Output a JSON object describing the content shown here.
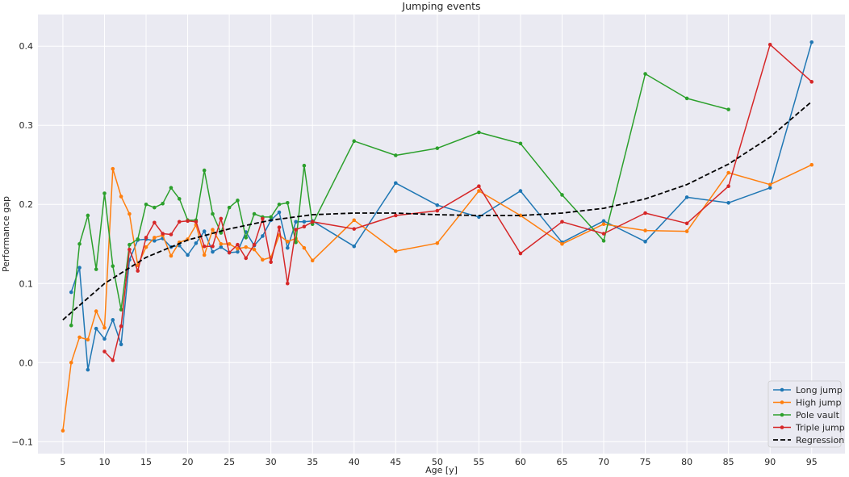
{
  "chart_data": {
    "type": "line",
    "title": "Jumping events",
    "xlabel": "Age [y]",
    "ylabel": "Performance gap",
    "xlim": [
      2,
      99
    ],
    "ylim": [
      -0.115,
      0.44
    ],
    "xticks": [
      5,
      10,
      15,
      20,
      25,
      30,
      35,
      40,
      45,
      50,
      55,
      60,
      65,
      70,
      75,
      80,
      85,
      90,
      95
    ],
    "yticks": [
      -0.1,
      0.0,
      0.1,
      0.2,
      0.3,
      0.4
    ],
    "ytick_labels": [
      "−0.1",
      "0.0",
      "0.1",
      "0.2",
      "0.3",
      "0.4"
    ],
    "grid": true,
    "background": "#eaeaf2",
    "legend_position": "lower-right",
    "series": [
      {
        "name": "Long jump",
        "color": "#1f77b4",
        "x": [
          6,
          7,
          8,
          9,
          10,
          11,
          12,
          13,
          14,
          15,
          16,
          17,
          18,
          19,
          20,
          21,
          22,
          23,
          24,
          25,
          26,
          27,
          28,
          29,
          30,
          31,
          32,
          33,
          34,
          35,
          40,
          45,
          50,
          55,
          60,
          65,
          70,
          75,
          80,
          85,
          90,
          95
        ],
        "y": [
          0.089,
          0.12,
          -0.009,
          0.043,
          0.03,
          0.054,
          0.023,
          0.13,
          0.155,
          0.156,
          0.154,
          0.157,
          0.146,
          0.148,
          0.136,
          0.151,
          0.166,
          0.14,
          0.146,
          0.139,
          0.14,
          0.165,
          0.148,
          0.16,
          0.18,
          0.19,
          0.145,
          0.178,
          0.178,
          0.179,
          0.147,
          0.227,
          0.199,
          0.184,
          0.217,
          0.152,
          0.179,
          0.153,
          0.209,
          0.202,
          0.221,
          0.405
        ]
      },
      {
        "name": "High jump",
        "color": "#ff7f0e",
        "x": [
          5,
          6,
          7,
          8,
          9,
          10,
          11,
          12,
          13,
          14,
          15,
          16,
          17,
          18,
          19,
          20,
          21,
          22,
          23,
          24,
          25,
          26,
          27,
          28,
          29,
          30,
          31,
          32,
          33,
          34,
          35,
          40,
          45,
          50,
          55,
          60,
          65,
          70,
          75,
          80,
          85,
          90,
          95
        ],
        "y": [
          -0.086,
          0.0,
          0.032,
          0.029,
          0.065,
          0.044,
          0.245,
          0.21,
          0.188,
          0.123,
          0.146,
          0.158,
          0.161,
          0.135,
          0.152,
          0.156,
          0.174,
          0.136,
          0.168,
          0.15,
          0.15,
          0.144,
          0.146,
          0.143,
          0.13,
          0.133,
          0.161,
          0.153,
          0.157,
          0.145,
          0.129,
          0.18,
          0.141,
          0.151,
          0.217,
          0.186,
          0.15,
          0.175,
          0.167,
          0.166,
          0.24,
          0.225,
          0.25
        ]
      },
      {
        "name": "Pole vault",
        "color": "#2ca02c",
        "x": [
          6,
          7,
          8,
          9,
          10,
          11,
          12,
          13,
          14,
          15,
          16,
          17,
          18,
          19,
          20,
          21,
          22,
          23,
          24,
          25,
          26,
          27,
          28,
          29,
          30,
          31,
          32,
          33,
          34,
          35,
          40,
          45,
          50,
          55,
          60,
          65,
          70,
          75,
          80,
          85
        ],
        "y": [
          0.047,
          0.15,
          0.186,
          0.118,
          0.214,
          0.122,
          0.067,
          0.149,
          0.156,
          0.2,
          0.196,
          0.201,
          0.221,
          0.207,
          0.18,
          0.18,
          0.243,
          0.188,
          0.164,
          0.196,
          0.205,
          0.158,
          0.188,
          0.184,
          0.184,
          0.2,
          0.202,
          0.152,
          0.249,
          0.175,
          0.28,
          0.262,
          0.271,
          0.291,
          0.277,
          0.212,
          0.154,
          0.365,
          0.334,
          0.32
        ]
      },
      {
        "name": "Triple jump",
        "color": "#d62728",
        "x": [
          10,
          11,
          12,
          13,
          14,
          15,
          16,
          17,
          18,
          19,
          20,
          21,
          22,
          23,
          24,
          25,
          26,
          27,
          28,
          29,
          30,
          31,
          32,
          33,
          34,
          35,
          40,
          45,
          50,
          55,
          60,
          65,
          70,
          75,
          80,
          85,
          90,
          95
        ],
        "y": [
          0.014,
          0.003,
          0.046,
          0.143,
          0.116,
          0.158,
          0.177,
          0.163,
          0.162,
          0.178,
          0.179,
          0.178,
          0.147,
          0.147,
          0.182,
          0.139,
          0.149,
          0.132,
          0.149,
          0.182,
          0.127,
          0.171,
          0.1,
          0.168,
          0.172,
          0.178,
          0.169,
          0.186,
          0.192,
          0.223,
          0.138,
          0.178,
          0.163,
          0.189,
          0.176,
          0.223,
          0.402,
          0.355
        ]
      },
      {
        "name": "Regression",
        "color": "#000000",
        "dashed": true,
        "x": [
          5,
          10,
          15,
          20,
          25,
          30,
          35,
          40,
          45,
          50,
          55,
          60,
          65,
          70,
          75,
          80,
          85,
          90,
          95
        ],
        "y": [
          0.054,
          0.1,
          0.133,
          0.155,
          0.169,
          0.18,
          0.187,
          0.189,
          0.189,
          0.187,
          0.186,
          0.186,
          0.189,
          0.195,
          0.207,
          0.225,
          0.251,
          0.285,
          0.33
        ]
      }
    ]
  }
}
